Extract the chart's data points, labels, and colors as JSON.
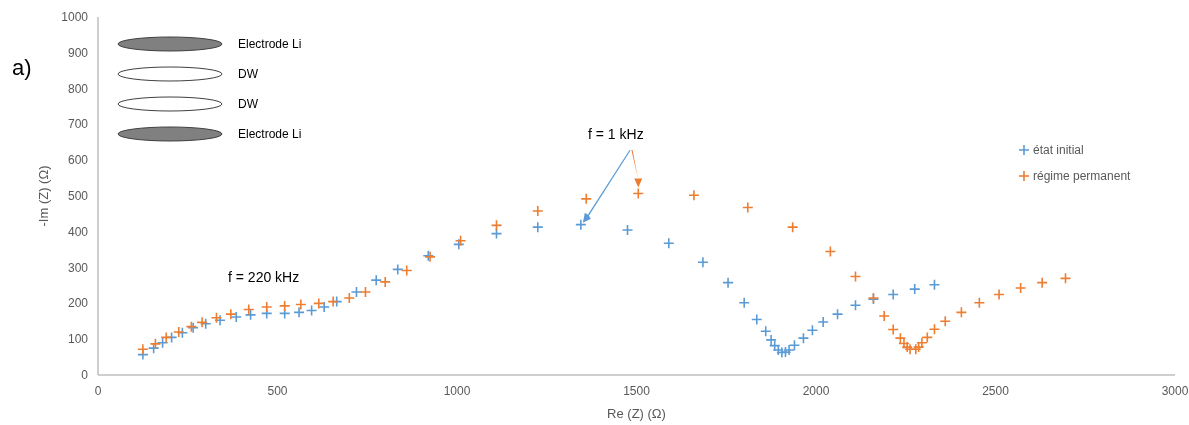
{
  "chart_data": {
    "type": "scatter",
    "xlabel": "Re (Z) (Ω)",
    "ylabel": "-Im (Z) (Ω)",
    "xlim": [
      0,
      3000
    ],
    "xticks": [
      0,
      500,
      1000,
      1500,
      2000,
      2500,
      3000
    ],
    "ylim": [
      0,
      1000
    ],
    "yticks": [
      0,
      100,
      200,
      300,
      400,
      500,
      600,
      700,
      800,
      900,
      1000
    ],
    "grid": false,
    "legend": "right",
    "marker": "cross",
    "annotations": [
      "a)",
      "f = 220 kHz",
      "f = 1 kHz",
      "Electrode Li",
      "DW",
      "DW",
      "Electrode Li"
    ],
    "series": [
      {
        "name": "état initial",
        "color": "#5b9bd5",
        "x": [
          125,
          155,
          180,
          205,
          235,
          265,
          300,
          340,
          385,
          425,
          470,
          520,
          560,
          595,
          630,
          665,
          720,
          775,
          835,
          920,
          1005,
          1110,
          1225,
          1345,
          1475,
          1590,
          1685,
          1755,
          1800,
          1835,
          1860,
          1875,
          1885,
          1895,
          1905,
          1915,
          1925,
          1940,
          1965,
          1990,
          2020,
          2060,
          2110,
          2160,
          2215,
          2275,
          2330
        ],
        "values": [
          57,
          75,
          90,
          105,
          118,
          132,
          143,
          153,
          162,
          168,
          172,
          172,
          175,
          180,
          190,
          205,
          232,
          265,
          295,
          333,
          365,
          395,
          413,
          420,
          405,
          368,
          315,
          258,
          202,
          155,
          122,
          98,
          82,
          70,
          63,
          64,
          70,
          83,
          103,
          125,
          148,
          170,
          195,
          212,
          225,
          240,
          252
        ]
      },
      {
        "name": "régime permanent",
        "color": "#ed7d31",
        "x": [
          125,
          160,
          190,
          225,
          260,
          290,
          330,
          370,
          420,
          470,
          520,
          565,
          615,
          655,
          700,
          745,
          800,
          860,
          925,
          1010,
          1110,
          1225,
          1360,
          1505,
          1660,
          1810,
          1935,
          2040,
          2110,
          2160,
          2190,
          2215,
          2235,
          2245,
          2254,
          2262,
          2278,
          2286,
          2295,
          2310,
          2330,
          2360,
          2405,
          2455,
          2510,
          2570,
          2630,
          2695
        ],
        "values": [
          72,
          87,
          105,
          120,
          135,
          147,
          160,
          170,
          183,
          190,
          193,
          197,
          200,
          205,
          215,
          232,
          260,
          292,
          330,
          375,
          418,
          458,
          492,
          507,
          502,
          468,
          413,
          345,
          275,
          215,
          165,
          127,
          103,
          88,
          78,
          72,
          72,
          78,
          90,
          105,
          128,
          150,
          175,
          202,
          225,
          243,
          258,
          270
        ]
      }
    ]
  }
}
